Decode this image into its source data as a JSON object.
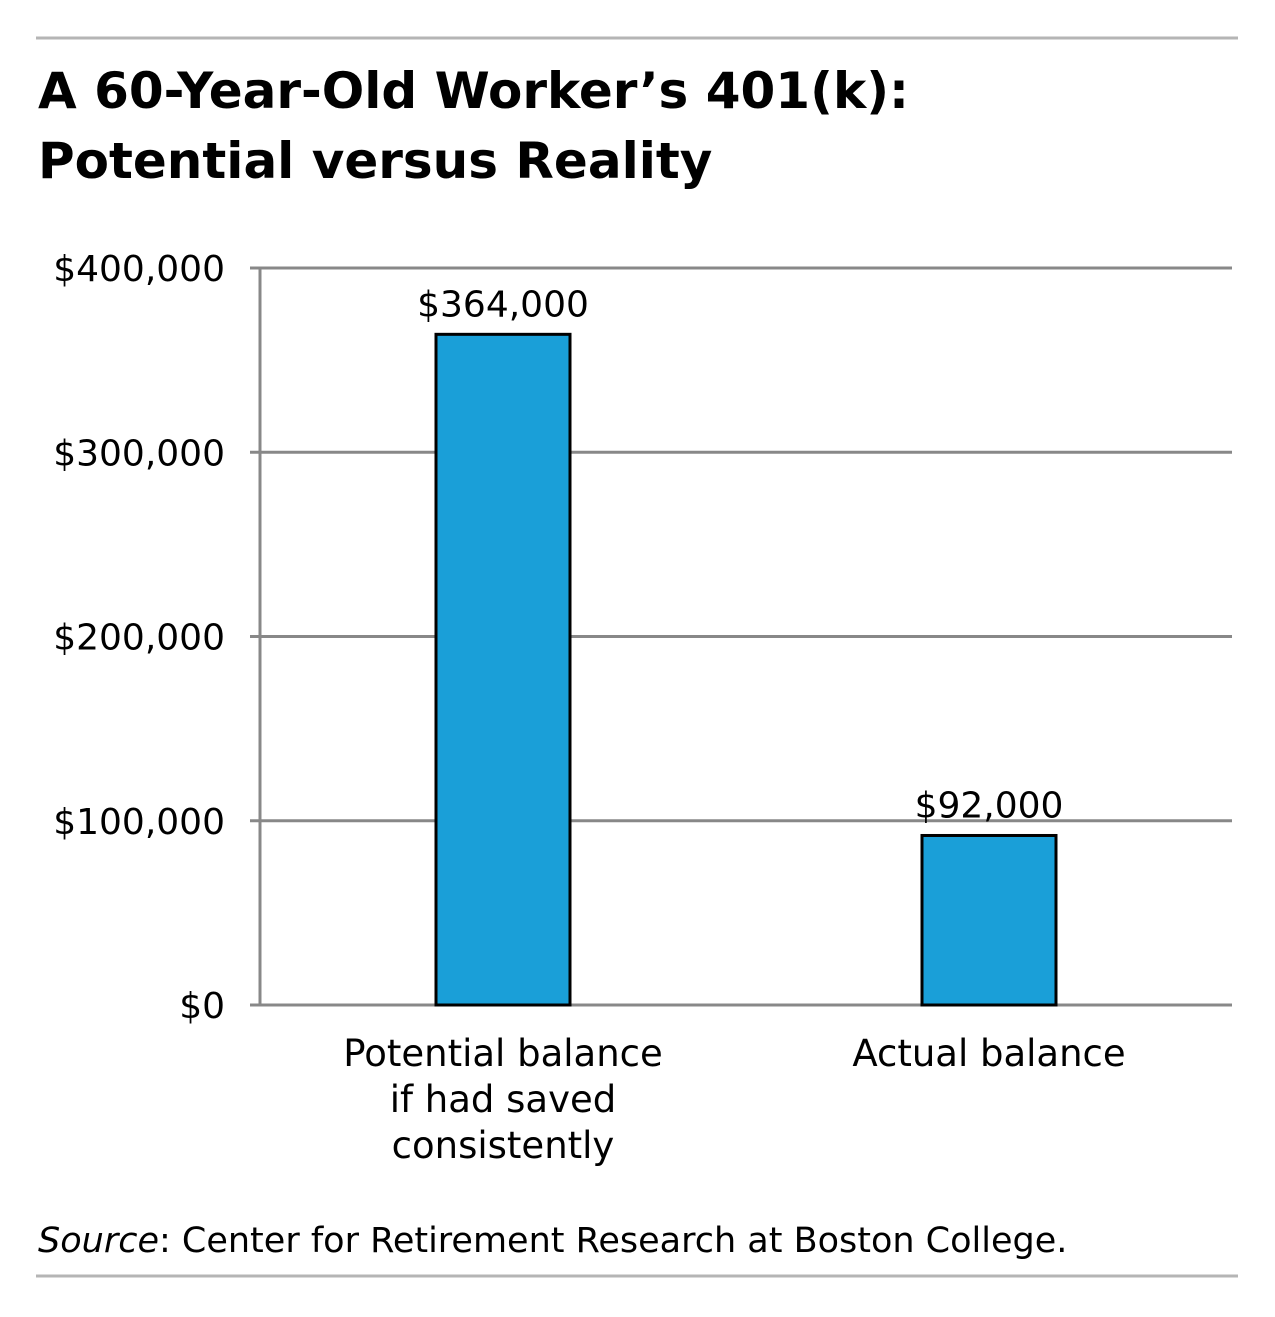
{
  "chart_data": {
    "type": "bar",
    "title": [
      "A 60-Year-Old Worker’s 401(k):",
      "Potential versus Reality"
    ],
    "categories": [
      [
        "Potential balance",
        "if had saved",
        "consistently"
      ],
      [
        "Actual balance"
      ]
    ],
    "values": [
      364000,
      92000
    ],
    "value_labels": [
      "$364,000",
      "$92,000"
    ],
    "color": "#1a9fd8",
    "ylim": [
      0,
      400000
    ],
    "yticks": [
      {
        "value": 0,
        "label": "$0"
      },
      {
        "value": 100000,
        "label": "$100,000"
      },
      {
        "value": 200000,
        "label": "$200,000"
      },
      {
        "value": 300000,
        "label": "$300,000"
      },
      {
        "value": 400000,
        "label": "$400,000"
      }
    ],
    "grid": true,
    "source_label": "Source",
    "source": ": Center for Retirement Research at Boston College."
  }
}
